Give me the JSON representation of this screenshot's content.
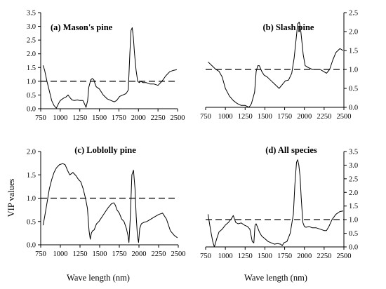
{
  "chart_data": [
    {
      "type": "line",
      "title": "(a) Mason's pine",
      "xlim": [
        750,
        2500
      ],
      "ylim": [
        0,
        3.5
      ],
      "xticks": [
        750,
        1000,
        1250,
        1500,
        1750,
        2000,
        2250,
        2500
      ],
      "yticks": [
        "0.0",
        "0.5",
        "1.0",
        "1.5",
        "2.0",
        "2.5",
        "3.0",
        "3.5"
      ],
      "threshold": 1.0,
      "series": [
        {
          "x": [
            780,
            800,
            830,
            860,
            890,
            920,
            950,
            980,
            1000,
            1040,
            1070,
            1100,
            1120,
            1150,
            1180,
            1220,
            1250,
            1290,
            1310,
            1330,
            1350,
            1365,
            1390,
            1410,
            1430,
            1440,
            1460,
            1500,
            1550,
            1600,
            1650,
            1690,
            1720,
            1760,
            1800,
            1840,
            1870,
            1890,
            1905,
            1920,
            1935,
            1950,
            1970,
            1990,
            2010,
            2030,
            2060,
            2100,
            2150,
            2200,
            2250,
            2300,
            2350,
            2400,
            2450,
            2490
          ],
          "y": [
            1.58,
            1.4,
            1.0,
            0.65,
            0.3,
            0.12,
            0.02,
            0.2,
            0.3,
            0.38,
            0.42,
            0.5,
            0.42,
            0.32,
            0.3,
            0.32,
            0.3,
            0.3,
            0.18,
            0.05,
            0.3,
            0.78,
            1.05,
            1.1,
            1.05,
            0.95,
            0.8,
            0.72,
            0.5,
            0.36,
            0.3,
            0.25,
            0.3,
            0.45,
            0.5,
            0.55,
            0.68,
            2.0,
            2.85,
            2.95,
            2.6,
            2.0,
            1.4,
            1.0,
            0.95,
            1.0,
            0.95,
            0.95,
            0.9,
            0.9,
            0.85,
            1.0,
            1.2,
            1.35,
            1.4,
            1.42
          ]
        }
      ]
    },
    {
      "type": "line",
      "title": "(b) Slash pine",
      "xlim": [
        750,
        2500
      ],
      "ylim": [
        0,
        2.5
      ],
      "xticks": [
        750,
        1000,
        1250,
        1500,
        1750,
        2000,
        2250,
        2500
      ],
      "yticks": [
        "0.0",
        "0.5",
        "1.0",
        "1.5",
        "2.0",
        "2.5"
      ],
      "threshold": 1.0,
      "series": [
        {
          "x": [
            780,
            830,
            880,
            920,
            960,
            1000,
            1050,
            1100,
            1150,
            1200,
            1250,
            1300,
            1330,
            1370,
            1390,
            1410,
            1430,
            1460,
            1490,
            1530,
            1580,
            1630,
            1680,
            1720,
            1760,
            1800,
            1840,
            1870,
            1900,
            1915,
            1935,
            1950,
            1965,
            1985,
            2010,
            2050,
            2100,
            2150,
            2200,
            2240,
            2280,
            2320,
            2360,
            2400,
            2450,
            2490
          ],
          "y": [
            1.2,
            1.1,
            1.0,
            0.95,
            0.8,
            0.5,
            0.3,
            0.18,
            0.1,
            0.05,
            0.05,
            0.0,
            0.1,
            0.4,
            0.95,
            1.1,
            1.1,
            0.95,
            0.85,
            0.8,
            0.7,
            0.6,
            0.5,
            0.6,
            0.7,
            0.72,
            0.9,
            1.3,
            1.9,
            2.2,
            2.25,
            2.1,
            1.8,
            1.4,
            1.1,
            1.05,
            1.0,
            1.0,
            1.0,
            0.95,
            0.9,
            1.0,
            1.25,
            1.45,
            1.55,
            1.5
          ]
        }
      ]
    },
    {
      "type": "line",
      "title": "(c) Loblolly pine",
      "xlim": [
        750,
        2500
      ],
      "ylim": [
        0,
        2.0
      ],
      "xticks": [
        750,
        1000,
        1250,
        1500,
        1750,
        2000,
        2250,
        2500
      ],
      "yticks": [
        "0.0",
        "0.5",
        "1.0",
        "1.5",
        "2.0"
      ],
      "threshold": 1.0,
      "ylabel": "VIP values",
      "series": [
        {
          "x": [
            780,
            800,
            830,
            860,
            890,
            920,
            950,
            990,
            1030,
            1060,
            1090,
            1120,
            1160,
            1200,
            1230,
            1260,
            1290,
            1320,
            1345,
            1365,
            1380,
            1395,
            1410,
            1430,
            1460,
            1490,
            1530,
            1570,
            1610,
            1650,
            1680,
            1700,
            1720,
            1750,
            1780,
            1810,
            1840,
            1860,
            1872,
            1890,
            1910,
            1930,
            1950,
            1965,
            1980,
            1995,
            2010,
            2030,
            2060,
            2100,
            2150,
            2200,
            2250,
            2300,
            2350,
            2400,
            2450,
            2490
          ],
          "y": [
            0.42,
            0.6,
            0.9,
            1.2,
            1.4,
            1.55,
            1.65,
            1.72,
            1.74,
            1.72,
            1.6,
            1.5,
            1.55,
            1.48,
            1.4,
            1.35,
            1.2,
            1.0,
            0.78,
            0.3,
            0.12,
            0.25,
            0.3,
            0.32,
            0.45,
            0.5,
            0.6,
            0.7,
            0.8,
            0.88,
            0.9,
            0.85,
            0.75,
            0.68,
            0.55,
            0.5,
            0.35,
            0.2,
            0.05,
            0.6,
            1.5,
            1.6,
            1.2,
            0.6,
            0.2,
            0.05,
            0.35,
            0.45,
            0.48,
            0.5,
            0.55,
            0.6,
            0.65,
            0.68,
            0.55,
            0.3,
            0.2,
            0.15
          ]
        }
      ]
    },
    {
      "type": "line",
      "title": "(d) All species",
      "xlim": [
        750,
        2500
      ],
      "ylim": [
        0,
        3.5
      ],
      "xticks": [
        750,
        1000,
        1250,
        1500,
        1750,
        2000,
        2250,
        2500
      ],
      "yticks": [
        "0.0",
        "0.5",
        "1.0",
        "1.5",
        "2.0",
        "2.5",
        "3.0",
        "3.5"
      ],
      "threshold": 1.0,
      "series": [
        {
          "x": [
            780,
            800,
            820,
            840,
            860,
            890,
            920,
            960,
            1000,
            1040,
            1080,
            1100,
            1130,
            1160,
            1200,
            1240,
            1280,
            1310,
            1340,
            1360,
            1375,
            1390,
            1410,
            1430,
            1460,
            1500,
            1540,
            1580,
            1620,
            1660,
            1700,
            1720,
            1740,
            1780,
            1820,
            1860,
            1880,
            1900,
            1915,
            1930,
            1945,
            1960,
            1980,
            2000,
            2020,
            2060,
            2100,
            2150,
            2200,
            2250,
            2280,
            2310,
            2350,
            2400,
            2450,
            2490
          ],
          "y": [
            1.2,
            0.85,
            0.5,
            0.2,
            0.0,
            0.3,
            0.55,
            0.65,
            0.8,
            0.9,
            1.05,
            1.15,
            0.9,
            0.85,
            0.88,
            0.8,
            0.75,
            0.65,
            0.2,
            0.15,
            0.8,
            0.85,
            0.7,
            0.55,
            0.4,
            0.3,
            0.2,
            0.15,
            0.1,
            0.12,
            0.1,
            0.05,
            0.15,
            0.2,
            0.5,
            1.2,
            2.3,
            3.1,
            3.2,
            3.0,
            2.6,
            1.8,
            0.9,
            0.75,
            0.72,
            0.75,
            0.7,
            0.7,
            0.65,
            0.6,
            0.6,
            0.75,
            1.0,
            1.2,
            1.3,
            1.32
          ]
        }
      ]
    }
  ],
  "shared": {
    "xlabel": "Wave length (nm)"
  }
}
